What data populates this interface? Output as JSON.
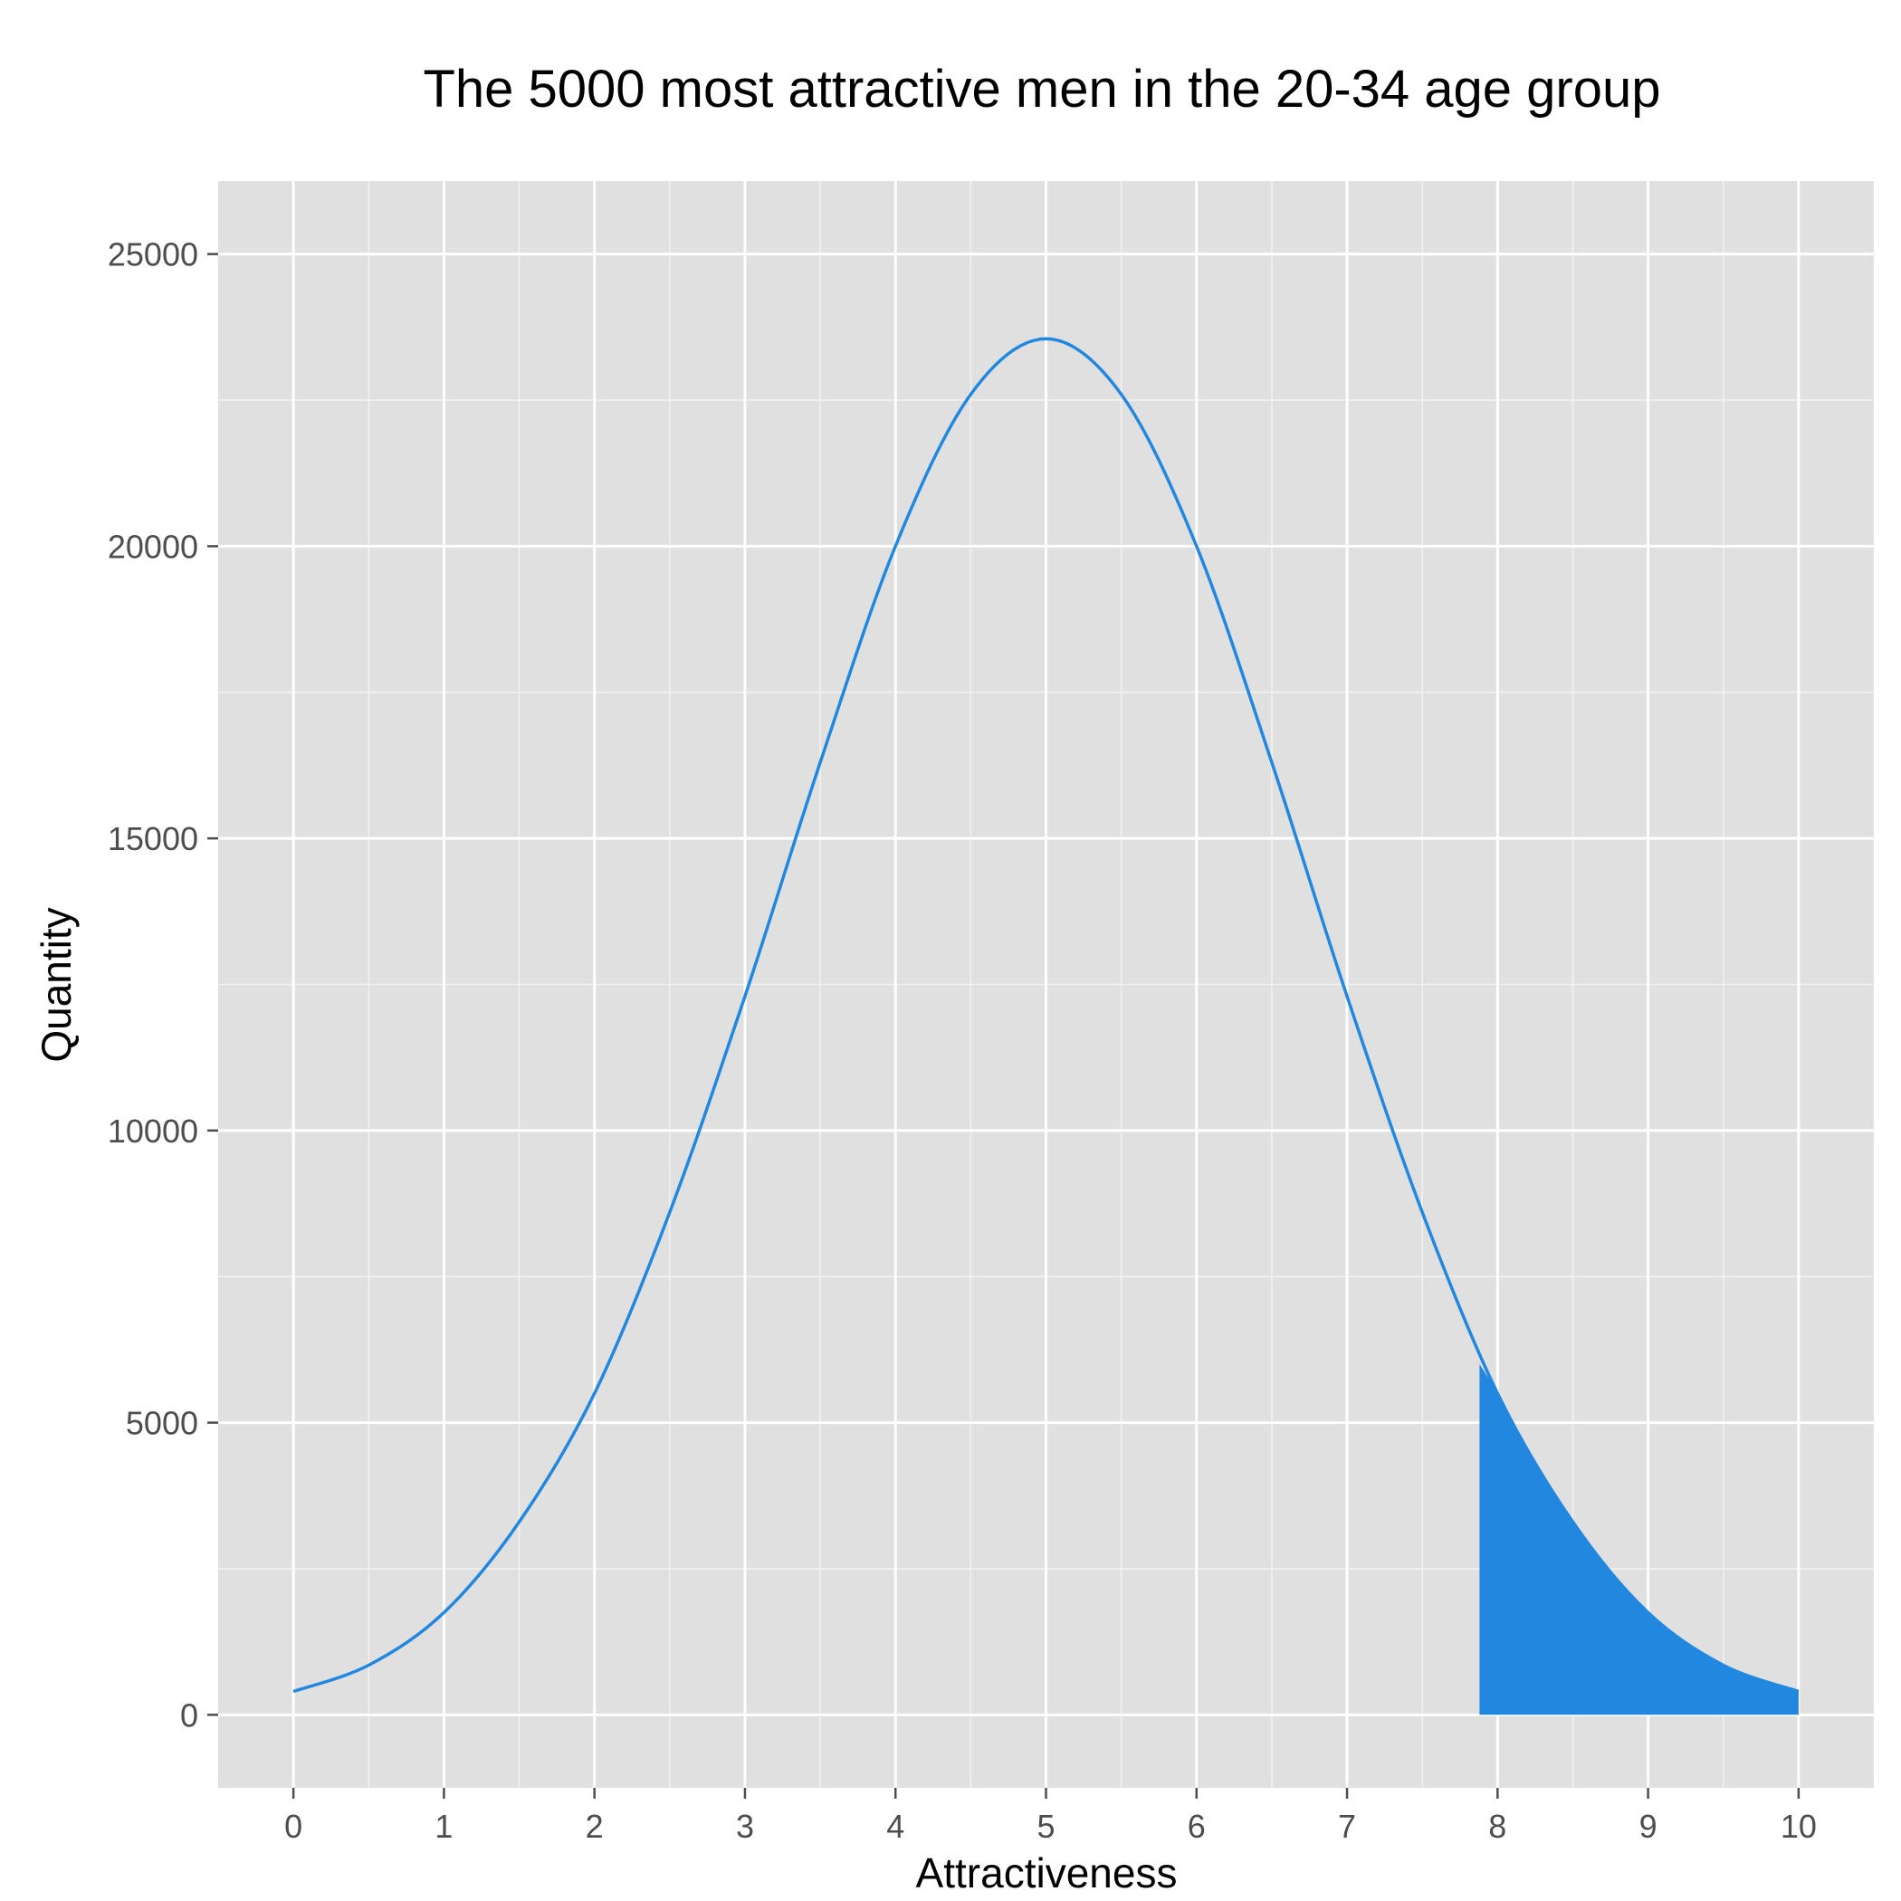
{
  "chart_data": {
    "type": "area",
    "title": "The 5000 most attractive men in the 20-34 age group",
    "xlabel": "Attractiveness",
    "ylabel": "Quantity",
    "xlim": [
      -0.5,
      10.5
    ],
    "ylim": [
      -1250,
      26250
    ],
    "x_ticks": [
      0,
      1,
      2,
      3,
      4,
      5,
      6,
      7,
      8,
      9,
      10
    ],
    "y_ticks": [
      0,
      5000,
      10000,
      15000,
      20000,
      25000
    ],
    "grid": true,
    "legend": "none",
    "series": [
      {
        "kind": "line",
        "color": "#2187DF",
        "x": [
          0,
          0.5,
          1,
          1.5,
          2,
          2.5,
          3,
          3.5,
          4,
          4.5,
          5,
          5.5,
          6,
          6.5,
          7,
          7.5,
          8,
          8.5,
          9,
          9.5,
          10
        ],
        "y": [
          400,
          850,
          1750,
          3300,
          5500,
          8600,
          12300,
          16300,
          20000,
          22600,
          23550,
          22600,
          20000,
          16300,
          12300,
          8600,
          5500,
          3300,
          1750,
          850,
          400
        ]
      },
      {
        "kind": "area",
        "color": "#2187DF",
        "x": [
          7.88,
          8,
          8.25,
          8.5,
          8.75,
          9,
          9.25,
          9.5,
          9.75,
          10
        ],
        "y": [
          6000,
          5500,
          4300,
          3300,
          2450,
          1750,
          1250,
          850,
          600,
          400
        ]
      }
    ]
  }
}
